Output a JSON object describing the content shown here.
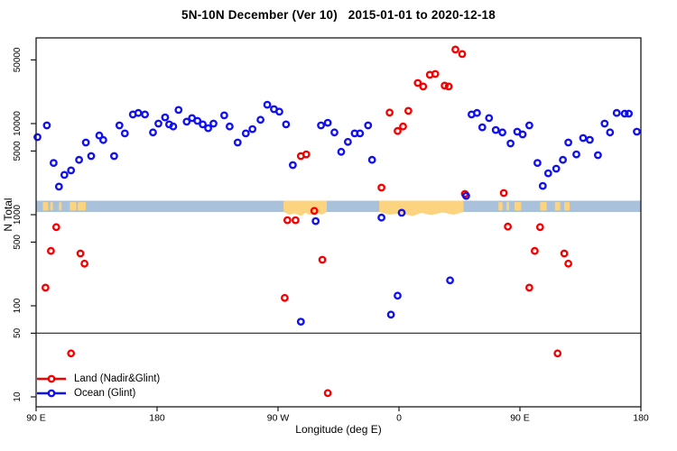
{
  "chart_data": {
    "type": "scatter",
    "title": "5N-10N December (Ver 10)   2015-01-01 to 2020-12-18",
    "xlabel": "Longitude (deg E)",
    "ylabel": "N Total",
    "x_axis": {
      "max_deg": 450,
      "note": "longitude wraps: starts at 90E, passes 180, 90W, 0, 90E, ends at 180",
      "ticks": [
        {
          "deg": 0,
          "label": "90 E"
        },
        {
          "deg": 90,
          "label": "180"
        },
        {
          "deg": 180,
          "label": "90 W"
        },
        {
          "deg": 270,
          "label": "0"
        },
        {
          "deg": 360,
          "label": "90 E"
        },
        {
          "deg": 450,
          "label": "180"
        }
      ]
    },
    "y_axis": {
      "scale": "log10",
      "range": [
        8,
        90000
      ],
      "ticks": [
        {
          "value": 10,
          "label": "10"
        },
        {
          "value": 50,
          "label": "50"
        },
        {
          "value": 100,
          "label": "100"
        },
        {
          "value": 500,
          "label": "500"
        },
        {
          "value": 1000,
          "label": "1000"
        },
        {
          "value": 5000,
          "label": "5000"
        },
        {
          "value": 10000,
          "label": "10000"
        },
        {
          "value": 50000,
          "label": "50000"
        }
      ]
    },
    "reference_line": {
      "value": 50,
      "color": "#3c3c3c"
    },
    "map_strip": {
      "description": "horizontal world-map band (ocean/land) drawn across the plot",
      "value_range": [
        1070,
        1420
      ],
      "ocean_color": "#aac1dc",
      "land_color": "#fcd37e",
      "land_patches_deg": [
        {
          "from": 184.5,
          "to": 216.3
        },
        {
          "from": 255.3,
          "to": 318.0
        }
      ],
      "land_flecks_deg": [
        [
          5,
          9
        ],
        [
          10.5,
          12.5
        ],
        [
          17,
          19
        ],
        [
          25,
          30
        ],
        [
          31,
          37
        ],
        [
          184,
          186
        ],
        [
          344,
          347
        ],
        [
          350,
          352
        ],
        [
          356,
          361
        ],
        [
          375,
          380
        ],
        [
          386,
          390
        ],
        [
          393,
          397
        ]
      ]
    },
    "series": [
      {
        "name": "Land (Nadir&Glint)",
        "color": "#f40000",
        "points": [
          [
            7,
            158
          ],
          [
            11,
            400
          ],
          [
            15,
            730
          ],
          [
            26,
            30
          ],
          [
            33,
            375
          ],
          [
            36,
            290
          ],
          [
            185,
            122
          ],
          [
            187,
            870
          ],
          [
            193,
            870
          ],
          [
            197,
            4400
          ],
          [
            201,
            4600
          ],
          [
            207,
            1100
          ],
          [
            213,
            320
          ],
          [
            217,
            11
          ],
          [
            257,
            1980
          ],
          [
            263,
            13200
          ],
          [
            269,
            8300
          ],
          [
            273,
            9300
          ],
          [
            277,
            13800
          ],
          [
            284,
            27900
          ],
          [
            288,
            25500
          ],
          [
            293,
            34300
          ],
          [
            297,
            35000
          ],
          [
            304,
            26100
          ],
          [
            307,
            25500
          ],
          [
            312,
            65000
          ],
          [
            317,
            58000
          ],
          [
            319,
            1690
          ],
          [
            348,
            1730
          ],
          [
            351,
            740
          ],
          [
            367,
            158
          ],
          [
            371,
            400
          ],
          [
            375,
            730
          ],
          [
            388,
            30
          ],
          [
            393,
            375
          ],
          [
            396,
            290
          ]
        ]
      },
      {
        "name": "Ocean (Glint)",
        "color": "#0f0ff0",
        "points": [
          [
            1,
            7100
          ],
          [
            8,
            9550
          ],
          [
            13,
            3700
          ],
          [
            17,
            2030
          ],
          [
            21,
            2730
          ],
          [
            26,
            3060
          ],
          [
            32,
            4000
          ],
          [
            37,
            6200
          ],
          [
            41,
            4400
          ],
          [
            47,
            7400
          ],
          [
            50,
            6600
          ],
          [
            58,
            4400
          ],
          [
            62,
            9550
          ],
          [
            66,
            7800
          ],
          [
            72,
            12600
          ],
          [
            76,
            13100
          ],
          [
            81,
            12600
          ],
          [
            87,
            8000
          ],
          [
            91,
            10000
          ],
          [
            96,
            11700
          ],
          [
            99,
            9800
          ],
          [
            102,
            9300
          ],
          [
            106,
            14100
          ],
          [
            112,
            10500
          ],
          [
            116,
            11500
          ],
          [
            120,
            10700
          ],
          [
            124,
            9800
          ],
          [
            128,
            8900
          ],
          [
            132,
            10000
          ],
          [
            140,
            12300
          ],
          [
            144,
            9300
          ],
          [
            150,
            6200
          ],
          [
            156,
            7800
          ],
          [
            161,
            8700
          ],
          [
            167,
            11000
          ],
          [
            172,
            16100
          ],
          [
            177,
            14400
          ],
          [
            181,
            13500
          ],
          [
            186,
            9800
          ],
          [
            191,
            3500
          ],
          [
            197,
            67
          ],
          [
            208,
            850
          ],
          [
            212,
            9550
          ],
          [
            217,
            10200
          ],
          [
            222,
            8000
          ],
          [
            227,
            4900
          ],
          [
            232,
            6300
          ],
          [
            237,
            7800
          ],
          [
            241,
            7800
          ],
          [
            247,
            9550
          ],
          [
            250,
            4000
          ],
          [
            257,
            930
          ],
          [
            264,
            80
          ],
          [
            269,
            129
          ],
          [
            272,
            1050
          ],
          [
            308,
            190
          ],
          [
            320,
            1610
          ],
          [
            324,
            12600
          ],
          [
            328,
            13100
          ],
          [
            332,
            9100
          ],
          [
            337,
            11500
          ],
          [
            342,
            8500
          ],
          [
            347,
            8000
          ],
          [
            353,
            6050
          ],
          [
            358,
            8150
          ],
          [
            362,
            7600
          ],
          [
            367,
            9550
          ],
          [
            373,
            3700
          ],
          [
            377,
            2070
          ],
          [
            381,
            2850
          ],
          [
            387,
            3200
          ],
          [
            392,
            4000
          ],
          [
            396,
            6200
          ],
          [
            402,
            4600
          ],
          [
            407,
            6950
          ],
          [
            412,
            6630
          ],
          [
            418,
            4500
          ],
          [
            423,
            10000
          ],
          [
            427,
            8000
          ],
          [
            432,
            13100
          ],
          [
            438,
            12850
          ],
          [
            441,
            12850
          ],
          [
            447,
            8150
          ]
        ]
      }
    ],
    "legend": {
      "position": "bottom-left"
    }
  }
}
